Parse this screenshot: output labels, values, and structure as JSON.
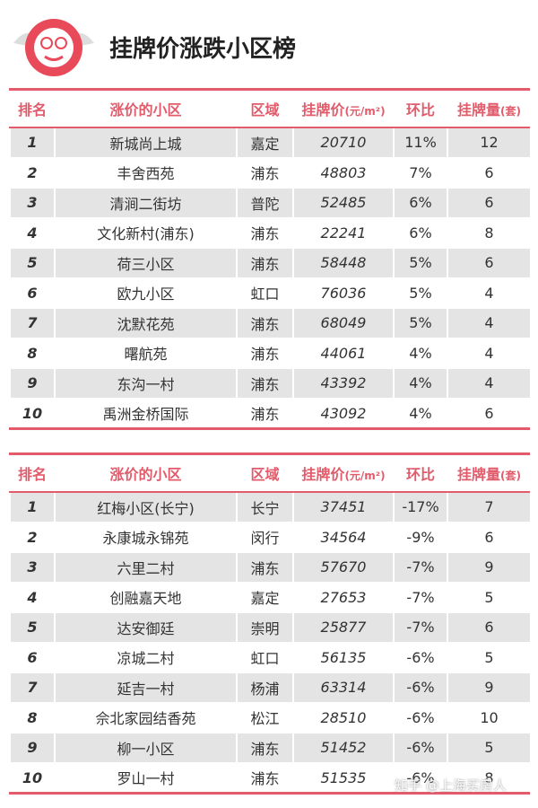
{
  "header": {
    "title": "挂牌价涨跌小区榜"
  },
  "tables": [
    {
      "header": [
        {
          "text": "排名"
        },
        {
          "text": "涨价的小区"
        },
        {
          "text": "区域"
        },
        {
          "text": "挂牌价",
          "unit": "(元/m²)"
        },
        {
          "text": "环比"
        },
        {
          "text": "挂牌量",
          "unit": "(套)"
        }
      ],
      "rows": [
        [
          "1",
          "新城尚上城",
          "嘉定",
          "20710",
          "11%",
          "12"
        ],
        [
          "2",
          "丰舍西苑",
          "浦东",
          "48803",
          "7%",
          "6"
        ],
        [
          "3",
          "清涧二街坊",
          "普陀",
          "52485",
          "6%",
          "6"
        ],
        [
          "4",
          "文化新村(浦东)",
          "浦东",
          "22241",
          "6%",
          "8"
        ],
        [
          "5",
          "荷三小区",
          "浦东",
          "58448",
          "5%",
          "6"
        ],
        [
          "6",
          "欧九小区",
          "虹口",
          "76036",
          "5%",
          "4"
        ],
        [
          "7",
          "沈默花苑",
          "浦东",
          "68049",
          "5%",
          "4"
        ],
        [
          "8",
          "曙航苑",
          "浦东",
          "44061",
          "4%",
          "4"
        ],
        [
          "9",
          "东沟一村",
          "浦东",
          "43392",
          "4%",
          "4"
        ],
        [
          "10",
          "禹洲金桥国际",
          "浦东",
          "43092",
          "4%",
          "6"
        ]
      ]
    },
    {
      "header": [
        {
          "text": "排名"
        },
        {
          "text": "涨价的小区"
        },
        {
          "text": "区域"
        },
        {
          "text": "挂牌价",
          "unit": "(元/m²)"
        },
        {
          "text": "环比"
        },
        {
          "text": "挂牌量",
          "unit": "(套)"
        }
      ],
      "rows": [
        [
          "1",
          "红梅小区(长宁)",
          "长宁",
          "37451",
          "-17%",
          "7"
        ],
        [
          "2",
          "永康城永锦苑",
          "闵行",
          "34564",
          "-9%",
          "6"
        ],
        [
          "3",
          "六里二村",
          "浦东",
          "57670",
          "-7%",
          "9"
        ],
        [
          "4",
          "创融嘉天地",
          "嘉定",
          "27653",
          "-7%",
          "5"
        ],
        [
          "5",
          "达安御廷",
          "崇明",
          "25877",
          "-7%",
          "6"
        ],
        [
          "6",
          "凉城二村",
          "虹口",
          "56135",
          "-6%",
          "5"
        ],
        [
          "7",
          "延吉一村",
          "杨浦",
          "63314",
          "-6%",
          "9"
        ],
        [
          "8",
          "佘北家园结香苑",
          "松江",
          "28510",
          "-6%",
          "10"
        ],
        [
          "9",
          "柳一小区",
          "浦东",
          "51452",
          "-6%",
          "5"
        ],
        [
          "10",
          "罗山一村",
          "浦东",
          "51535",
          "-6%",
          "8"
        ]
      ]
    }
  ],
  "watermark": "知乎 @上海买房人"
}
